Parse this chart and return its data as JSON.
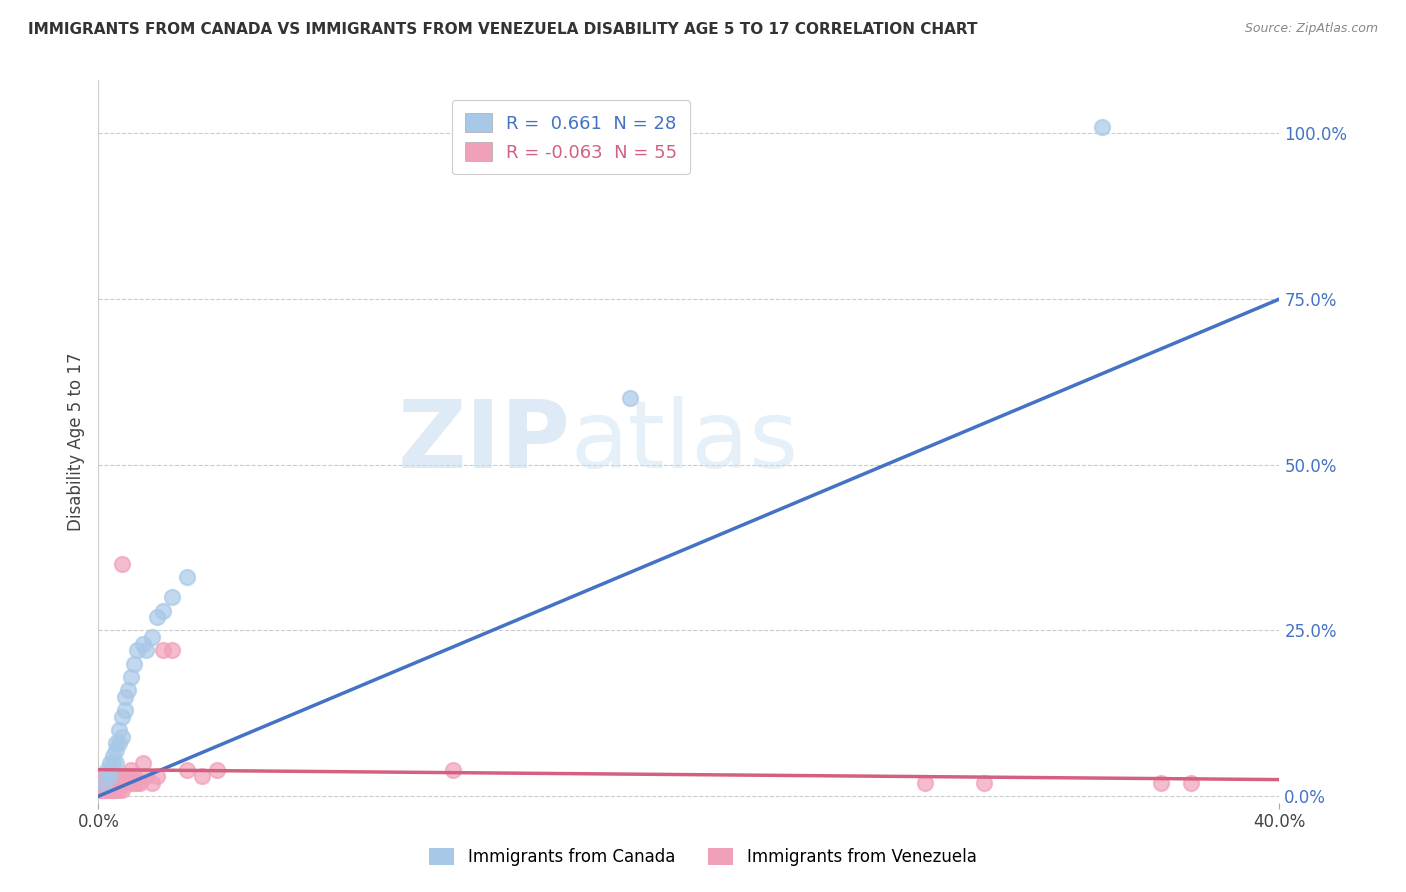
{
  "title": "IMMIGRANTS FROM CANADA VS IMMIGRANTS FROM VENEZUELA DISABILITY AGE 5 TO 17 CORRELATION CHART",
  "source": "Source: ZipAtlas.com",
  "ylabel": "Disability Age 5 to 17",
  "xlim": [
    0,
    0.4
  ],
  "ylim": [
    -0.01,
    1.08
  ],
  "xticks": [
    0.0,
    0.4
  ],
  "xtick_labels": [
    "0.0%",
    "40.0%"
  ],
  "ytick_labels_right": [
    "0.0%",
    "25.0%",
    "50.0%",
    "75.0%",
    "100.0%"
  ],
  "yticks_right": [
    0.0,
    0.25,
    0.5,
    0.75,
    1.0
  ],
  "canada_color": "#a8c8e8",
  "venezuela_color": "#f0a0b8",
  "canada_R": 0.661,
  "canada_N": 28,
  "venezuela_R": -0.063,
  "venezuela_N": 55,
  "canada_line_color": "#4472c4",
  "venezuela_line_color": "#d46080",
  "watermark_zip": "ZIP",
  "watermark_atlas": "atlas",
  "background_color": "#ffffff",
  "grid_color": "#cccccc",
  "canada_x": [
    0.002,
    0.003,
    0.004,
    0.004,
    0.005,
    0.005,
    0.006,
    0.006,
    0.006,
    0.007,
    0.007,
    0.008,
    0.008,
    0.009,
    0.009,
    0.01,
    0.011,
    0.012,
    0.013,
    0.015,
    0.016,
    0.018,
    0.02,
    0.022,
    0.025,
    0.03,
    0.18,
    0.34
  ],
  "canada_y": [
    0.02,
    0.04,
    0.03,
    0.05,
    0.05,
    0.06,
    0.05,
    0.07,
    0.08,
    0.08,
    0.1,
    0.09,
    0.12,
    0.13,
    0.15,
    0.16,
    0.18,
    0.2,
    0.22,
    0.23,
    0.22,
    0.24,
    0.27,
    0.28,
    0.3,
    0.33,
    0.6,
    1.01
  ],
  "venezuela_x": [
    0.001,
    0.001,
    0.001,
    0.002,
    0.002,
    0.002,
    0.002,
    0.002,
    0.003,
    0.003,
    0.003,
    0.003,
    0.003,
    0.004,
    0.004,
    0.004,
    0.004,
    0.005,
    0.005,
    0.005,
    0.005,
    0.005,
    0.006,
    0.006,
    0.006,
    0.007,
    0.007,
    0.007,
    0.008,
    0.008,
    0.008,
    0.009,
    0.009,
    0.01,
    0.01,
    0.011,
    0.011,
    0.012,
    0.012,
    0.013,
    0.014,
    0.015,
    0.016,
    0.018,
    0.02,
    0.022,
    0.025,
    0.03,
    0.035,
    0.04,
    0.12,
    0.28,
    0.3,
    0.36,
    0.37
  ],
  "venezuela_y": [
    0.01,
    0.01,
    0.02,
    0.01,
    0.01,
    0.02,
    0.02,
    0.03,
    0.01,
    0.01,
    0.02,
    0.02,
    0.03,
    0.01,
    0.02,
    0.02,
    0.03,
    0.01,
    0.01,
    0.02,
    0.02,
    0.03,
    0.01,
    0.02,
    0.03,
    0.01,
    0.02,
    0.03,
    0.01,
    0.02,
    0.35,
    0.02,
    0.03,
    0.02,
    0.03,
    0.02,
    0.04,
    0.02,
    0.03,
    0.02,
    0.02,
    0.05,
    0.03,
    0.02,
    0.03,
    0.22,
    0.22,
    0.04,
    0.03,
    0.04,
    0.04,
    0.02,
    0.02,
    0.02,
    0.02
  ],
  "canada_line_x": [
    0.0,
    0.4
  ],
  "canada_line_y": [
    0.0,
    0.75
  ],
  "venezuela_line_x": [
    0.0,
    0.4
  ],
  "venezuela_line_y": [
    0.04,
    0.025
  ]
}
